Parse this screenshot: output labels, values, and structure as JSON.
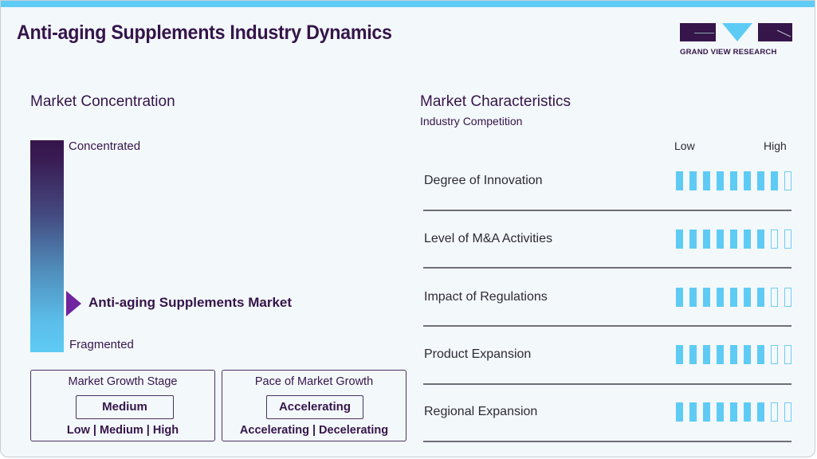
{
  "header": {
    "title": "Anti-aging Supplements Industry Dynamics",
    "logo_text": "GRAND VIEW RESEARCH",
    "accent_color": "#5ecbf5",
    "brand_color": "#35154a"
  },
  "market_concentration": {
    "title": "Market Concentration",
    "top_label": "Concentrated",
    "bottom_label": "Fragmented",
    "market_label": "Anti-aging Supplements Market",
    "marker_position": "near fragmented (approx. 23% from bottom)"
  },
  "growth_stage": {
    "title": "Market Growth Stage",
    "value": "Medium",
    "options": [
      "Low",
      "Medium",
      "High"
    ],
    "options_text": "Low | Medium | High"
  },
  "growth_pace": {
    "title": "Pace of Market Growth",
    "value": "Accelerating",
    "options": [
      "Accelerating",
      "Decelerating"
    ],
    "options_text": "Accelerating | Decelerating"
  },
  "characteristics": {
    "title": "Market Characteristics",
    "subtitle": "Industry Competition",
    "scale_low": "Low",
    "scale_high": "High",
    "max_bars": 9,
    "rows": [
      {
        "label": "Degree of Innovation",
        "filled": 8
      },
      {
        "label": "Level of M&A Activities",
        "filled": 7
      },
      {
        "label": "Impact of Regulations",
        "filled": 7
      },
      {
        "label": "Product Expansion",
        "filled": 7
      },
      {
        "label": "Regional Expansion",
        "filled": 7
      }
    ]
  }
}
